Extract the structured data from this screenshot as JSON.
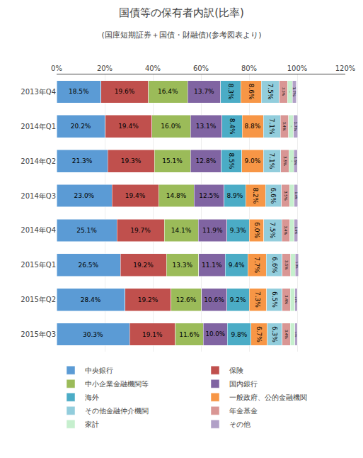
{
  "chart_data": {
    "type": "bar",
    "orientation": "horizontal",
    "stacked": true,
    "title": "国債等の保有者内訳(比率)",
    "subtitle": "(国庫短期証券＋国債・財融債)(参考図表より)",
    "categories": [
      "2013年Q4",
      "2014年Q1",
      "2014年Q2",
      "2014年Q3",
      "2014年Q4",
      "2015年Q1",
      "2015年Q2",
      "2015年Q3"
    ],
    "xlim": [
      0,
      120
    ],
    "xticks": [
      {
        "value": 0,
        "label": "0%"
      },
      {
        "value": 20,
        "label": "20%"
      },
      {
        "value": 40,
        "label": "40%"
      },
      {
        "value": 60,
        "label": "60%"
      },
      {
        "value": 80,
        "label": "80%"
      },
      {
        "value": 100,
        "label": "100%"
      },
      {
        "value": 120,
        "label": "120%"
      }
    ],
    "grid": true,
    "legend": "bottom",
    "data_labels": true,
    "series": [
      {
        "name": "中央銀行",
        "color": "#5B9BD5",
        "values": [
          18.5,
          20.2,
          21.3,
          23.0,
          25.1,
          26.5,
          28.4,
          30.3
        ],
        "value_labels": [
          "18.5%",
          "20.2%",
          "21.3%",
          "23.0%",
          "25.1%",
          "26.5%",
          "28.4%",
          "30.3%"
        ]
      },
      {
        "name": "保険",
        "color": "#C0504D",
        "values": [
          19.6,
          19.4,
          19.3,
          19.4,
          19.7,
          19.2,
          19.2,
          19.1
        ],
        "value_labels": [
          "19.6%",
          "19.4%",
          "19.3%",
          "19.4%",
          "19.7%",
          "19.2%",
          "19.2%",
          "19.1%"
        ]
      },
      {
        "name": "中小企業金融機関等",
        "color": "#9BBB59",
        "values": [
          16.4,
          16.0,
          15.1,
          14.8,
          14.1,
          13.3,
          12.6,
          11.6
        ],
        "value_labels": [
          "16.4%",
          "16.0%",
          "15.1%",
          "14.8%",
          "14.1%",
          "13.3%",
          "12.6%",
          "11.6%"
        ]
      },
      {
        "name": "国内銀行",
        "color": "#8064A2",
        "values": [
          13.7,
          13.1,
          12.8,
          12.5,
          11.9,
          11.1,
          10.6,
          10.0
        ],
        "value_labels": [
          "13.7%",
          "13.1%",
          "12.8%",
          "12.5%",
          "11.9%",
          "11.1%",
          "10.6%",
          "10.0%"
        ]
      },
      {
        "name": "海外",
        "color": "#4BACC6",
        "values": [
          8.3,
          8.4,
          8.5,
          8.9,
          9.3,
          9.4,
          9.2,
          9.8
        ],
        "value_labels": [
          "8.3%",
          "8.4%",
          "8.5%",
          "8.9%",
          "9.3%",
          "9.4%",
          "9.2%",
          "9.8%"
        ]
      },
      {
        "name": "一般政府、公的金融機関",
        "color": "#F79646",
        "values": [
          8.6,
          8.8,
          9.0,
          8.2,
          6.0,
          7.7,
          7.3,
          6.7
        ],
        "value_labels": [
          "8.6%",
          "8.8%",
          "9.0%",
          "8.2%",
          "6.0%",
          "7.7%",
          "7.3%",
          "6.7%"
        ]
      },
      {
        "name": "その他金融仲介機関",
        "color": "#92CDDC",
        "values": [
          7.5,
          7.1,
          7.1,
          6.6,
          7.5,
          6.6,
          6.5,
          6.3
        ],
        "value_labels": [
          "7.5%",
          "7.1%",
          "7.1%",
          "6.6%",
          "7.5%",
          "6.6%",
          "6.5%",
          "6.3%"
        ]
      },
      {
        "name": "年金基金",
        "color": "#D99694",
        "values": [
          3.3,
          3.4,
          3.5,
          3.5,
          3.4,
          3.5,
          3.4,
          3.4
        ],
        "value_labels": [
          "3.3%",
          "3.4%",
          "3.5%",
          "3.5%",
          "3.4%",
          "3.5%",
          "3.4%",
          "3.4%"
        ]
      },
      {
        "name": "家計",
        "color": "#C6EFCE",
        "values": [
          2.1,
          2.1,
          2.0,
          1.9,
          1.8,
          1.9,
          1.8,
          1.8
        ],
        "value_labels": [
          "2.1%",
          "2.1%",
          "2.0%",
          "1.9%",
          "1.8%",
          "1.9%",
          "1.8%",
          "1.8%"
        ]
      },
      {
        "name": "その他",
        "color": "#B1A0C7",
        "values": [
          1.7,
          1.7,
          1.5,
          1.4,
          1.4,
          1.3,
          1.1,
          1.0
        ],
        "value_labels": [
          "1.7%",
          "1.7%",
          "1.5%",
          "1.4%",
          "1.4%",
          "1.3%",
          "1.1%",
          "1.0%"
        ]
      }
    ]
  }
}
